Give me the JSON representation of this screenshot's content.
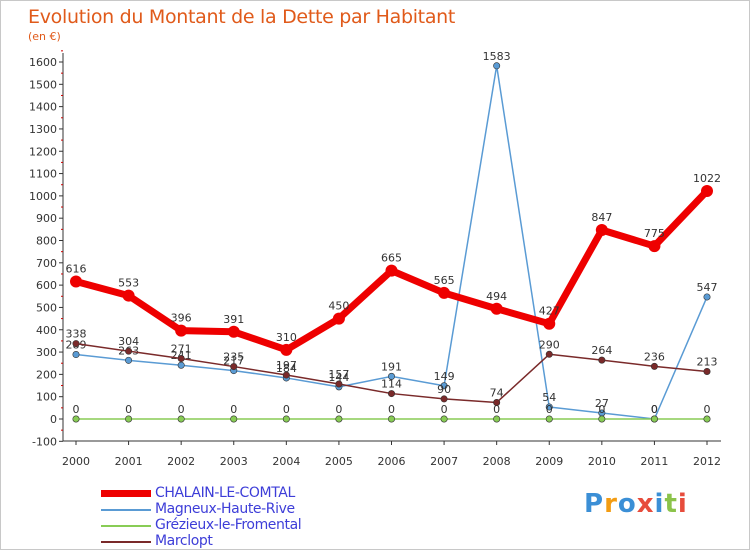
{
  "title": "Evolution du Montant de la Dette par Habitant",
  "unit_label": "(en €)",
  "brand": {
    "text": "Proxiti",
    "letters": [
      {
        "ch": "P",
        "color": "#3b8fd6"
      },
      {
        "ch": "r",
        "color": "#f39c12"
      },
      {
        "ch": "o",
        "color": "#3b8fd6"
      },
      {
        "ch": "x",
        "color": "#e74c3c"
      },
      {
        "ch": "i",
        "color": "#3b8fd6"
      },
      {
        "ch": "t",
        "color": "#8bc34a"
      },
      {
        "ch": "i",
        "color": "#e74c3c"
      }
    ]
  },
  "colors": {
    "axis": "#333333",
    "grid_tick": "#cc0000",
    "label_text": "#333333"
  },
  "chart_data": {
    "type": "line",
    "x": [
      "2000",
      "2001",
      "2002",
      "2003",
      "2004",
      "2005",
      "2006",
      "2007",
      "2008",
      "2009",
      "2010",
      "2011",
      "2012"
    ],
    "ylim": [
      -100,
      1650
    ],
    "yticks": [
      -100,
      0,
      100,
      200,
      300,
      400,
      500,
      600,
      700,
      800,
      900,
      1000,
      1100,
      1200,
      1300,
      1400,
      1500,
      1600
    ],
    "legend_position": "bottom-left",
    "series": [
      {
        "name": "CHALAIN-LE-COMTAL",
        "color": "#ee0000",
        "values": [
          616,
          553,
          396,
          391,
          310,
          450,
          665,
          565,
          494,
          427,
          847,
          775,
          1022
        ],
        "labels": [
          "616",
          "553",
          "396",
          "391",
          "310",
          "450",
          "665",
          "565",
          "494",
          "427",
          "847",
          "775",
          "1022"
        ],
        "thick": true
      },
      {
        "name": "Magneux-Haute-Rive",
        "color": "#5a9bd4",
        "values": [
          289,
          263,
          241,
          217,
          184,
          144,
          191,
          149,
          1583,
          54,
          27,
          0,
          547
        ],
        "labels": [
          "289",
          "263",
          "241",
          "217",
          "184",
          "144",
          "191",
          "149",
          "1583",
          "54",
          "27",
          "0",
          "547"
        ],
        "thick": false
      },
      {
        "name": "Grézieux-le-Fromental",
        "color": "#88cc55",
        "values": [
          0,
          0,
          0,
          0,
          0,
          0,
          0,
          0,
          0,
          0,
          0,
          0,
          0
        ],
        "labels": [
          "0",
          "0",
          "0",
          "0",
          "0",
          "0",
          "0",
          "0",
          "0",
          "0",
          "0",
          "0",
          "0"
        ],
        "thick": false
      },
      {
        "name": "Marclopt",
        "color": "#7a2a2a",
        "values": [
          338,
          304,
          271,
          235,
          197,
          157,
          114,
          90,
          74,
          290,
          264,
          236,
          213
        ],
        "labels": [
          "338",
          "304",
          "271",
          "235",
          "197",
          "157",
          "114",
          "90",
          "74",
          "290",
          "264",
          "236",
          "213"
        ],
        "thick": false
      }
    ]
  }
}
